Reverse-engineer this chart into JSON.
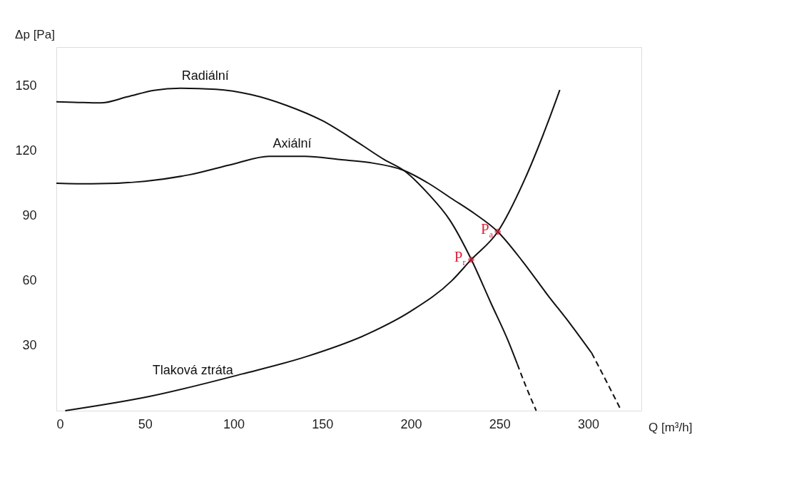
{
  "chart_data": {
    "type": "line",
    "xlabel": "Q [m³/h]",
    "ylabel": "Δp [Pa]",
    "xlim": [
      0,
      330
    ],
    "ylim": [
      0,
      168
    ],
    "xticks": [
      0,
      50,
      100,
      150,
      200,
      250,
      300
    ],
    "yticks": [
      30,
      60,
      90,
      120,
      150
    ],
    "grid": false,
    "marker": "none",
    "series": [
      {
        "color": "#111111",
        "line_style": "solid",
        "x": [
          0,
          10,
          25,
          40,
          55,
          70,
          90,
          110,
          130,
          150,
          170,
          185,
          196,
          210,
          222,
          234,
          245,
          255,
          260
        ],
        "values": [
          142.7,
          142.5,
          142.2,
          145,
          148,
          149,
          148.5,
          146,
          141,
          134,
          124,
          116,
          111,
          100,
          88,
          70,
          50,
          32,
          21.6
        ]
      },
      {
        "color": "#111111",
        "line_style": "dashed",
        "x": [
          260,
          265,
          270.7
        ],
        "values": [
          21.6,
          11,
          0
        ]
      },
      {
        "color": "#111111",
        "line_style": "solid",
        "x": [
          0,
          20,
          50,
          75,
          100,
          120,
          140,
          160,
          176,
          196,
          210,
          223,
          236,
          249,
          263,
          277,
          290,
          302
        ],
        "values": [
          105.1,
          104.8,
          106,
          109,
          114,
          117.5,
          117.5,
          116,
          114.7,
          111,
          105,
          98,
          91,
          82.7,
          69,
          53.6,
          40,
          26.6
        ]
      },
      {
        "color": "#111111",
        "line_style": "dashed",
        "x": [
          302,
          310,
          318.7
        ],
        "values": [
          26.6,
          14,
          0
        ]
      },
      {
        "color": "#111111",
        "line_style": "solid",
        "x": [
          5,
          52,
          105,
          141,
          176,
          200,
          223,
          234,
          249,
          264,
          277,
          284
        ],
        "values": [
          0,
          6.5,
          17,
          25,
          35.6,
          46,
          60,
          69.8,
          82.7,
          106.5,
          132.6,
          148.2
        ]
      },
      {
        "type": "scatter",
        "color": "#e0203a",
        "marker": "cross",
        "x": [
          234,
          249
        ],
        "values": [
          69.8,
          82.7
        ]
      }
    ],
    "annotations": [
      {
        "text": "Radiální",
        "x": 84,
        "y": 149
      },
      {
        "text": "Axiální",
        "x": 133,
        "y": 117.5
      },
      {
        "text": "Tlaková ztráta",
        "x": 77,
        "y": 13
      },
      {
        "text": "P$_{r}$",
        "x": 234,
        "y": 69.8
      },
      {
        "text": "P$_{a}$",
        "x": 249,
        "y": 82.7
      }
    ]
  }
}
